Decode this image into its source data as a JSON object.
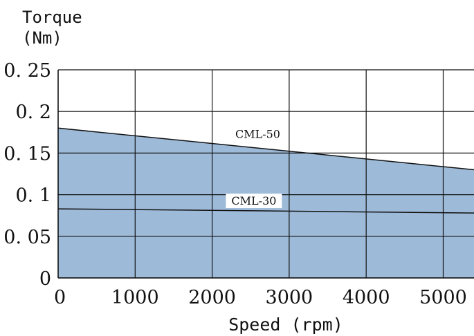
{
  "chart_data": {
    "type": "area",
    "ylabel_line1": "Torque",
    "ylabel_line2": "(Nm)",
    "xlabel": "Speed (rpm)",
    "xlim": [
      0,
      5400
    ],
    "ylim": [
      0,
      0.25
    ],
    "xticks": [
      0,
      1000,
      2000,
      3000,
      4000,
      5000
    ],
    "xtick_labels": [
      "0",
      "1000",
      "2000",
      "3000",
      "4000",
      "5000"
    ],
    "yticks": [
      0,
      0.05,
      0.1,
      0.15,
      0.2,
      0.25
    ],
    "ytick_labels": [
      "0",
      "0. 05",
      "0. 1",
      "0. 15",
      "0. 2",
      "0. 25"
    ],
    "grid": true,
    "fill_color": "#9dbad8",
    "series": [
      {
        "name": "CML-50",
        "x": [
          0,
          5400
        ],
        "values": [
          0.18,
          0.13
        ],
        "label_at": [
          2300,
          0.168
        ]
      },
      {
        "name": "CML-30",
        "x": [
          0,
          5400
        ],
        "values": [
          0.083,
          0.078
        ],
        "label_at": [
          2250,
          0.088
        ]
      }
    ]
  }
}
